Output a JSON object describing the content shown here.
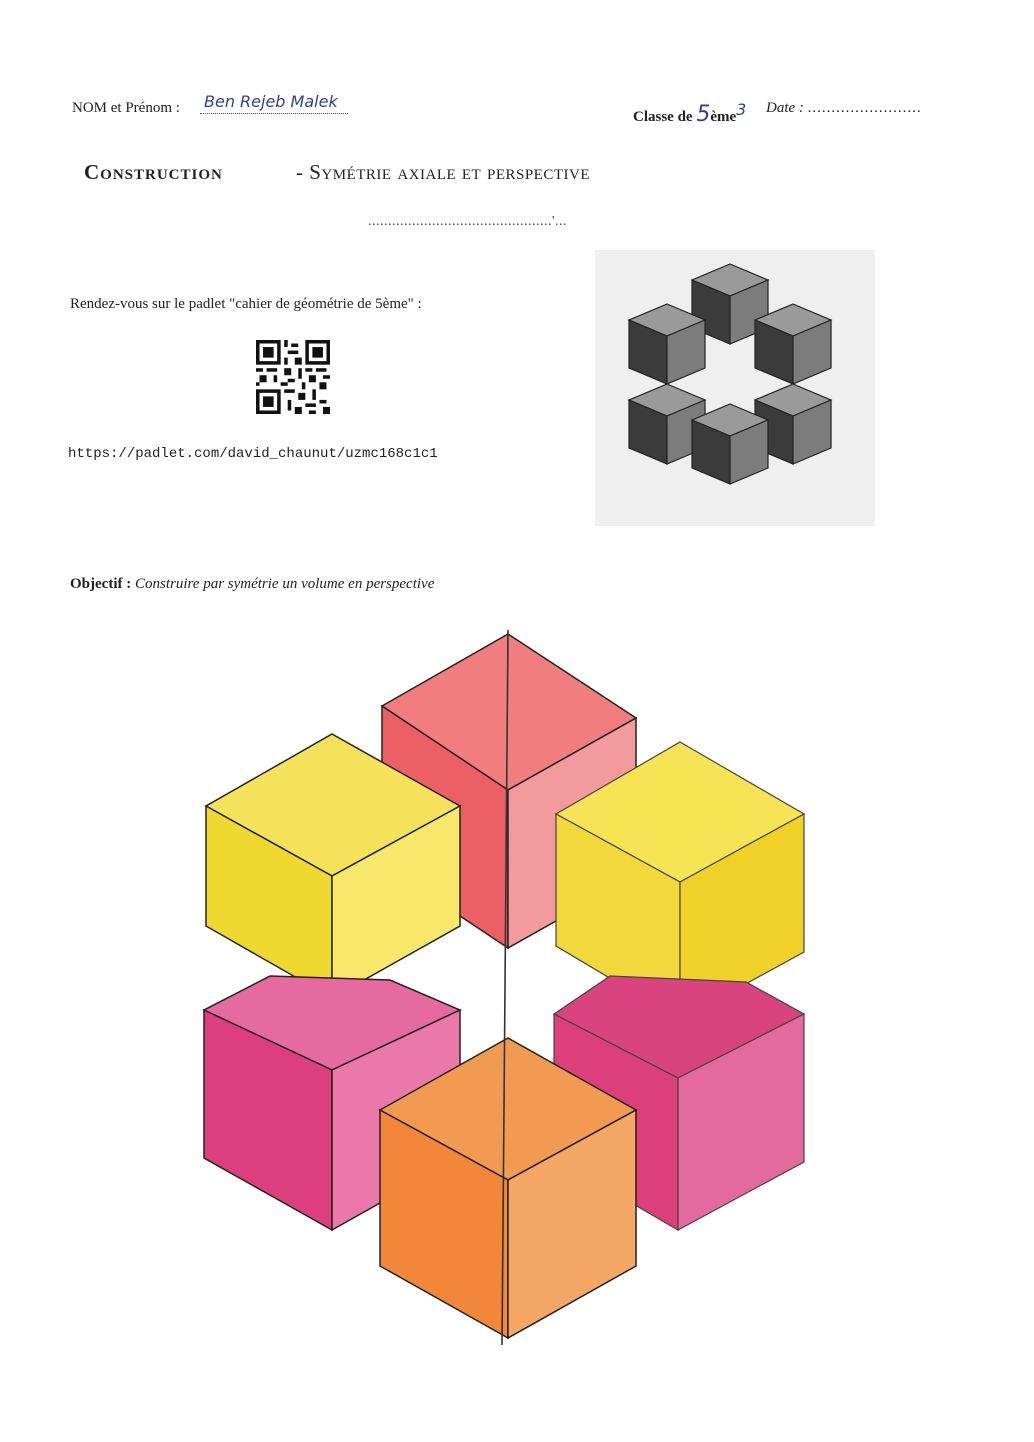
{
  "header": {
    "name_label": "NOM et Prénom :",
    "name_handwritten": "Ben Rejeb Malek",
    "class_label": "Classe de",
    "class_handwritten": "5",
    "class_suffix": "ème",
    "class_number": "3",
    "date_label": "Date :",
    "date_dots": "........................"
  },
  "title": {
    "left": "Construction",
    "right": "- Symétrie axiale et perspective",
    "dots_line": "..............................................'..."
  },
  "padlet": {
    "instruction": "Rendez-vous sur le padlet \"cahier de géométrie de 5ème\" :",
    "url": "https://padlet.com/david_chaunut/uzmc168c1c1"
  },
  "objective": {
    "label": "Objectif :",
    "text": "Construire par symétrie un volume en perspective"
  },
  "colors": {
    "yellow": "#f5e04a",
    "red": "#ef6b70",
    "magenta": "#e0407e",
    "orange": "#f3923f",
    "grey_dark": "#3a3a3a",
    "grey_light": "#bdbdbd"
  }
}
